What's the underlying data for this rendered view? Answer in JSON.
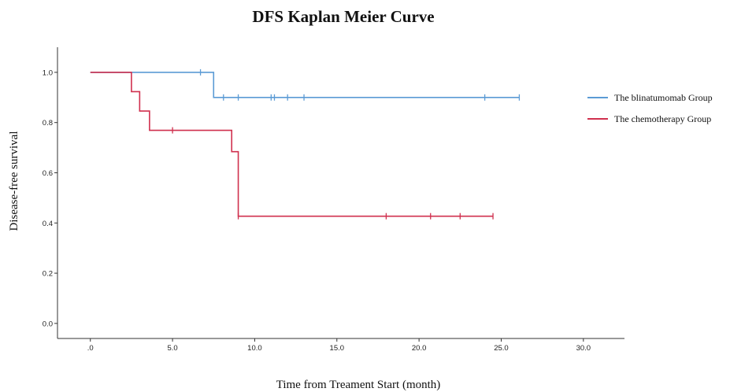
{
  "chart_data": {
    "type": "line",
    "title": "DFS Kaplan Meier Curve",
    "xlabel": "Time from Treament Start (month)",
    "ylabel": "Disease-free survival",
    "xlim": [
      -2,
      32.5
    ],
    "ylim": [
      -0.06,
      1.1
    ],
    "x_ticks": [
      0,
      5,
      10,
      15,
      20,
      25,
      30
    ],
    "x_tick_labels": [
      ".0",
      "5.0",
      "10.0",
      "15.0",
      "20.0",
      "25.0",
      "30.0"
    ],
    "y_ticks": [
      0,
      0.2,
      0.4,
      0.6,
      0.8,
      1.0
    ],
    "y_tick_labels": [
      "0.0",
      "0.2",
      "0.4",
      "0.6",
      "0.8",
      "1.0"
    ],
    "grid": false,
    "legend_position": "right",
    "series": [
      {
        "name": "The blinatumomab Group",
        "color": "#5b9bd5",
        "steps": [
          [
            0,
            1.0
          ],
          [
            7.5,
            0.9
          ],
          [
            26.1,
            0.9
          ]
        ],
        "censored": [
          [
            6.7,
            1.0
          ],
          [
            8.1,
            0.9
          ],
          [
            9.0,
            0.9
          ],
          [
            11.0,
            0.9
          ],
          [
            11.2,
            0.9
          ],
          [
            12.0,
            0.9
          ],
          [
            13.0,
            0.9
          ],
          [
            24.0,
            0.9
          ],
          [
            26.1,
            0.9
          ]
        ]
      },
      {
        "name": "The chemotherapy Group",
        "color": "#d0304e",
        "steps": [
          [
            0,
            1.0
          ],
          [
            2.5,
            0.923
          ],
          [
            3.0,
            0.846
          ],
          [
            3.6,
            0.769
          ],
          [
            8.6,
            0.684
          ],
          [
            9.0,
            0.427
          ],
          [
            24.5,
            0.427
          ]
        ],
        "censored": [
          [
            5.0,
            0.769
          ],
          [
            9.0,
            0.427
          ],
          [
            18.0,
            0.427
          ],
          [
            20.7,
            0.427
          ],
          [
            22.5,
            0.427
          ],
          [
            24.5,
            0.427
          ]
        ]
      }
    ]
  }
}
